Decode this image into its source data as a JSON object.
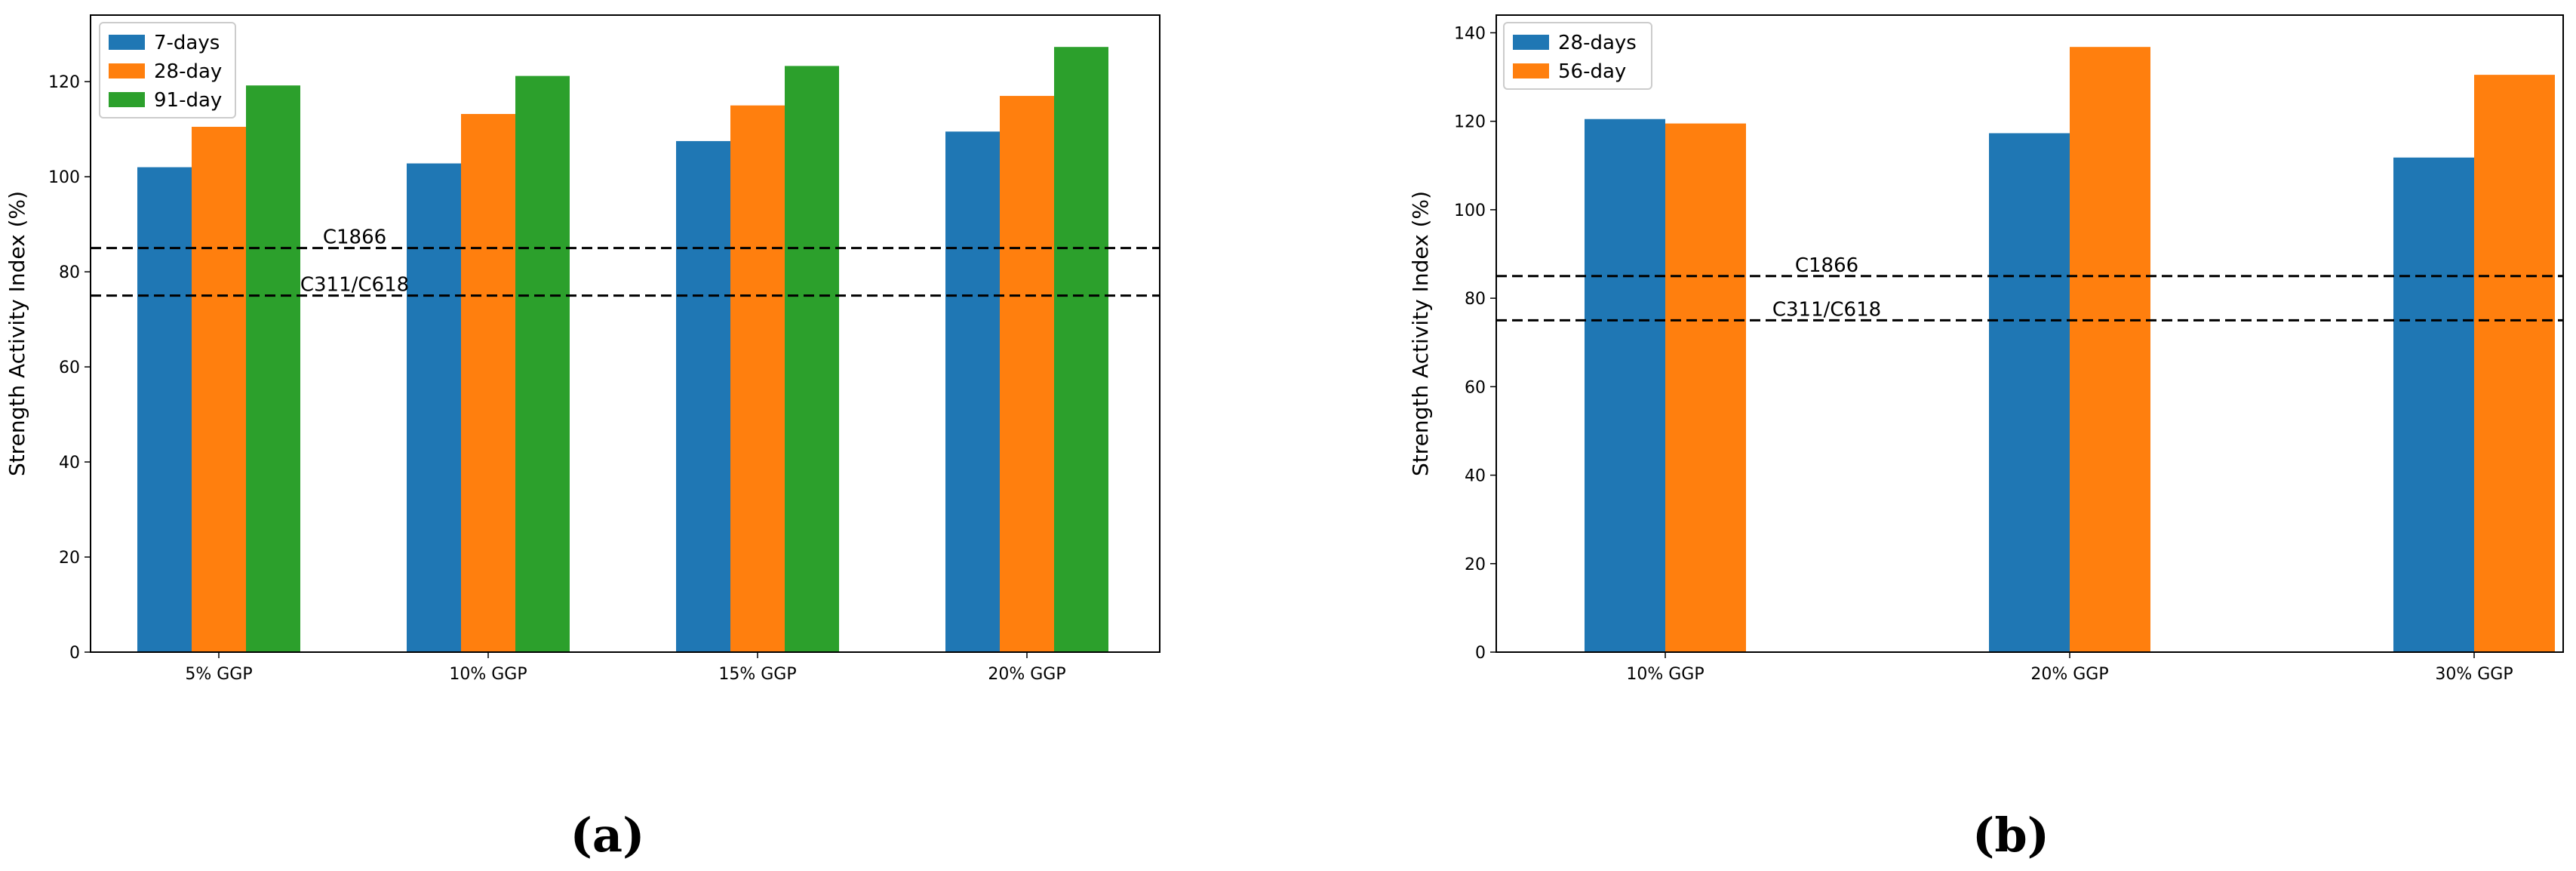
{
  "chart_data": [
    {
      "type": "bar",
      "panel_label": "(a)",
      "title": "",
      "xlabel": "",
      "ylabel": "Strength Activity Index (%)",
      "ylim": [
        0,
        134
      ],
      "yticks": [
        0,
        20,
        40,
        60,
        80,
        100,
        120
      ],
      "categories": [
        "5% GGP",
        "10% GGP",
        "15% GGP",
        "20% GGP"
      ],
      "series": [
        {
          "name": "7-days",
          "color": "#1f77b4",
          "values": [
            102,
            102.8,
            107.5,
            109.5
          ]
        },
        {
          "name": "28-day",
          "color": "#ff7f0e",
          "values": [
            110.5,
            113.2,
            115,
            117
          ]
        },
        {
          "name": "91-day",
          "color": "#2ca02c",
          "values": [
            119.2,
            121.2,
            123.3,
            127.3
          ]
        }
      ],
      "reference_lines": [
        {
          "label": "C1866",
          "value": 85
        },
        {
          "label": "C311/C618",
          "value": 75
        }
      ],
      "legend_position": "top-left"
    },
    {
      "type": "bar",
      "panel_label": "(b)",
      "title": "",
      "xlabel": "",
      "ylabel": "Strength Activity Index (%)",
      "ylim": [
        0,
        144
      ],
      "yticks": [
        0,
        20,
        40,
        60,
        80,
        100,
        120,
        140
      ],
      "categories": [
        "10% GGP",
        "20% GGP",
        "30% GGP"
      ],
      "series": [
        {
          "name": "28-days",
          "color": "#1f77b4",
          "values": [
            120.5,
            117.3,
            111.8
          ]
        },
        {
          "name": "56-day",
          "color": "#ff7f0e",
          "values": [
            119.5,
            136.8,
            130.5
          ]
        }
      ],
      "reference_lines": [
        {
          "label": "C1866",
          "value": 85
        },
        {
          "label": "C311/C618",
          "value": 75
        }
      ],
      "legend_position": "top-left"
    }
  ]
}
